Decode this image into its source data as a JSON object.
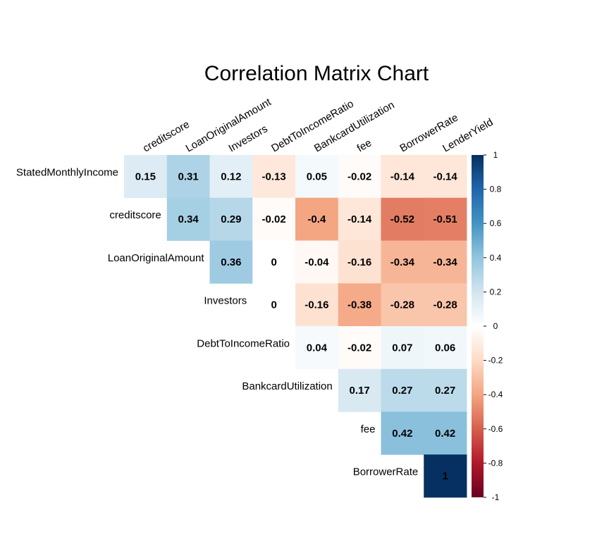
{
  "chart_data": {
    "type": "heatmap",
    "title": "Correlation Matrix Chart",
    "layout": "upper-triangle, diagonal omitted",
    "columns": [
      "creditscore",
      "LoanOriginalAmount",
      "Investors",
      "DebtToIncomeRatio",
      "BankcardUtilization",
      "fee",
      "BorrowerRate",
      "LenderYield"
    ],
    "rows": [
      "StatedMonthlyIncome",
      "creditscore",
      "LoanOriginalAmount",
      "Investors",
      "DebtToIncomeRatio",
      "BankcardUtilization",
      "fee",
      "BorrowerRate"
    ],
    "values": [
      [
        0.15,
        0.31,
        0.12,
        -0.13,
        0.05,
        -0.02,
        -0.14,
        -0.14
      ],
      [
        null,
        0.34,
        0.29,
        -0.02,
        -0.4,
        -0.14,
        -0.52,
        -0.51
      ],
      [
        null,
        null,
        0.36,
        0,
        -0.04,
        -0.16,
        -0.34,
        -0.34
      ],
      [
        null,
        null,
        null,
        0,
        -0.16,
        -0.38,
        -0.28,
        -0.28
      ],
      [
        null,
        null,
        null,
        null,
        0.04,
        -0.02,
        0.07,
        0.06
      ],
      [
        null,
        null,
        null,
        null,
        null,
        0.17,
        0.27,
        0.27
      ],
      [
        null,
        null,
        null,
        null,
        null,
        null,
        0.42,
        0.42
      ],
      [
        null,
        null,
        null,
        null,
        null,
        null,
        null,
        1
      ]
    ],
    "labels": [
      [
        "0.15",
        "0.31",
        "0.12",
        "-0.13",
        "0.05",
        "-0.02",
        "-0.14",
        "-0.14"
      ],
      [
        null,
        "0.34",
        "0.29",
        "-0.02",
        "-0.4",
        "-0.14",
        "-0.52",
        "-0.51"
      ],
      [
        null,
        null,
        "0.36",
        "0",
        "-0.04",
        "-0.16",
        "-0.34",
        "-0.34"
      ],
      [
        null,
        null,
        null,
        "0",
        "-0.16",
        "-0.38",
        "-0.28",
        "-0.28"
      ],
      [
        null,
        null,
        null,
        null,
        "0.04",
        "-0.02",
        "0.07",
        "0.06"
      ],
      [
        null,
        null,
        null,
        null,
        null,
        "0.17",
        "0.27",
        "0.27"
      ],
      [
        null,
        null,
        null,
        null,
        null,
        null,
        "0.42",
        "0.42"
      ],
      [
        null,
        null,
        null,
        null,
        null,
        null,
        null,
        "1"
      ]
    ],
    "color_scale": {
      "range": [
        -1,
        1
      ],
      "palette": [
        "#67001F",
        "#B2182B",
        "#D6604D",
        "#F4A582",
        "#FDDBC7",
        "#FFFFFF",
        "#D1E5F0",
        "#92C5DE",
        "#4393C3",
        "#2166AC",
        "#053061"
      ],
      "ticks": [
        1,
        0.8,
        0.6,
        0.4,
        0.2,
        0,
        -0.2,
        -0.4,
        -0.6,
        -0.8,
        -1
      ],
      "tick_labels": [
        "1",
        "0.8",
        "0.6",
        "0.4",
        "0.2",
        "0",
        "-0.2",
        "-0.4",
        "-0.6",
        "-0.8",
        "-1"
      ],
      "placement": "right"
    },
    "grid": false
  }
}
